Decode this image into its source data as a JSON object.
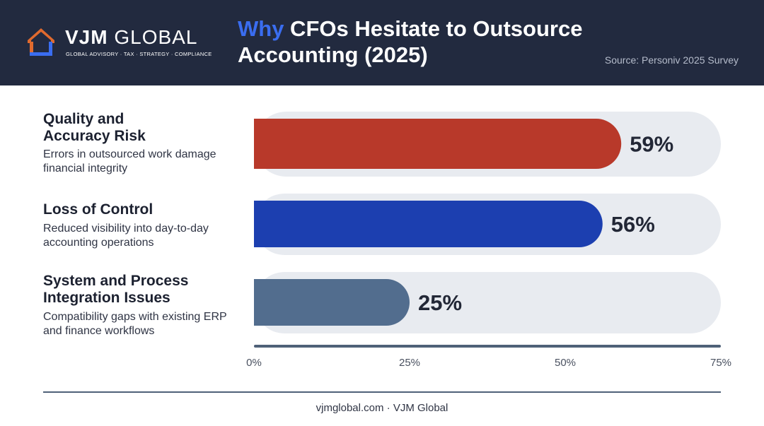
{
  "header": {
    "logo_name_bold": "VJM",
    "logo_name_rest": " GLOBAL",
    "logo_tagline": "GLOBAL ADVISORY · TAX · STRATEGY · COMPLIANCE",
    "title_accent": "Why",
    "title_rest": " CFOs Hesitate to Outsource Accounting (2025)",
    "source": "Source: Personiv 2025 Survey"
  },
  "colors": {
    "header_bg": "#222a3f",
    "title_accent": "#3a6df0",
    "track": "#e8ebf0",
    "axis_line": "#4f6178"
  },
  "chart_data": {
    "type": "bar",
    "orientation": "horizontal",
    "categories": [
      "Quality and Accuracy Risk",
      "Loss of Control",
      "System and Process Integration Issues"
    ],
    "category_titles": [
      "Quality and\nAccuracy Risk",
      "Loss of Control",
      "System and Process\nIntegration Issues"
    ],
    "descriptions": [
      "Errors in outsourced work damage financial integrity",
      "Reduced visibility into day-to-day accounting operations",
      "Compatibility gaps with existing ERP and finance workflows"
    ],
    "values": [
      59,
      56,
      25
    ],
    "value_labels": [
      "59%",
      "56%",
      "25%"
    ],
    "bar_colors": [
      "#b8392a",
      "#1c3fb0",
      "#526d8e"
    ],
    "xlim": [
      0,
      75
    ],
    "xticks": [
      0,
      25,
      50,
      75
    ],
    "xtick_labels": [
      "0%",
      "25%",
      "50%",
      "75%"
    ],
    "grid": false
  },
  "footer": {
    "text": "vjmglobal.com · VJM Global"
  }
}
